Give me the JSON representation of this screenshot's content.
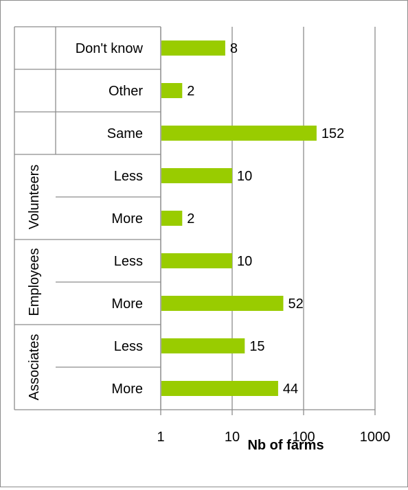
{
  "chart_data": {
    "type": "bar",
    "orientation": "horizontal",
    "x_scale": "log",
    "xlim": [
      1,
      1000
    ],
    "xticks": [
      "1",
      "10",
      "100",
      "1000"
    ],
    "xlabel": "Nb of farms",
    "grid": true,
    "bar_color": "#99CC00",
    "categories": [
      {
        "label": "Don't know",
        "group": "",
        "value": 8
      },
      {
        "label": "Other",
        "group": "",
        "value": 2
      },
      {
        "label": "Same",
        "group": "",
        "value": 152
      },
      {
        "label": "Less",
        "group": "Volunteers",
        "value": 10
      },
      {
        "label": "More",
        "group": "Volunteers",
        "value": 2
      },
      {
        "label": "Less",
        "group": "Employees",
        "value": 10
      },
      {
        "label": "More",
        "group": "Employees",
        "value": 52
      },
      {
        "label": "Less",
        "group": "Associates",
        "value": 15
      },
      {
        "label": "More",
        "group": "Associates",
        "value": 44
      }
    ],
    "groups": [
      "Volunteers",
      "Employees",
      "Associates"
    ]
  }
}
